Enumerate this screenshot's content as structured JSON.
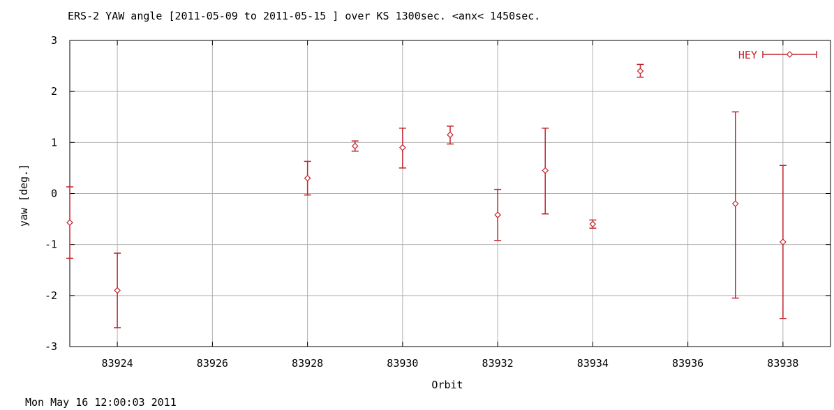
{
  "chart_data": {
    "type": "scatter",
    "title": "ERS-2 YAW angle [2011-05-09 to 2011-05-15 ] over KS 1300sec. <anx< 1450sec.",
    "xlabel": "Orbit",
    "ylabel": "yaw [deg.]",
    "xlim": [
      83923,
      83939
    ],
    "ylim": [
      -3,
      3
    ],
    "xticks": [
      83924,
      83926,
      83928,
      83930,
      83932,
      83934,
      83936,
      83938
    ],
    "yticks": [
      -3,
      -2,
      -1,
      0,
      1,
      2,
      3
    ],
    "grid": true,
    "legend_position": "top-right",
    "series": [
      {
        "name": "HEY",
        "color": "#c0262d",
        "marker": "diamond",
        "error_bars": true,
        "points": [
          {
            "x": 83923,
            "y": -0.57,
            "ylow": -1.27,
            "yhigh": 0.13
          },
          {
            "x": 83924,
            "y": -1.9,
            "ylow": -2.63,
            "yhigh": -1.17
          },
          {
            "x": 83928,
            "y": 0.3,
            "ylow": -0.03,
            "yhigh": 0.63
          },
          {
            "x": 83929,
            "y": 0.93,
            "ylow": 0.83,
            "yhigh": 1.03
          },
          {
            "x": 83930,
            "y": 0.9,
            "ylow": 0.5,
            "yhigh": 1.28
          },
          {
            "x": 83931,
            "y": 1.15,
            "ylow": 0.97,
            "yhigh": 1.32
          },
          {
            "x": 83932,
            "y": -0.42,
            "ylow": -0.92,
            "yhigh": 0.08
          },
          {
            "x": 83933,
            "y": 0.45,
            "ylow": -0.4,
            "yhigh": 1.28
          },
          {
            "x": 83934,
            "y": -0.6,
            "ylow": -0.68,
            "yhigh": -0.52
          },
          {
            "x": 83935,
            "y": 2.4,
            "ylow": 2.28,
            "yhigh": 2.53
          },
          {
            "x": 83937,
            "y": -0.2,
            "ylow": -2.05,
            "yhigh": 1.6
          },
          {
            "x": 83938,
            "y": -0.95,
            "ylow": -2.45,
            "yhigh": 0.55
          }
        ]
      }
    ]
  },
  "footer": {
    "timestamp": "Mon May 16 12:00:03 2011"
  }
}
